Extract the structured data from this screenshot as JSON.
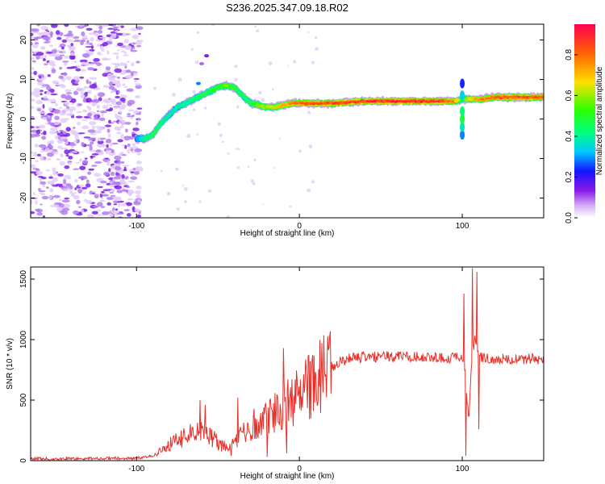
{
  "title": "S236.2025.347.09.18.R02",
  "chart_data": [
    {
      "type": "heatmap",
      "name": "spectrogram",
      "xlabel": "Height of straight line (km)",
      "ylabel": "Frequency (Hz)",
      "xlim": [
        -165,
        150
      ],
      "ylim": [
        -25,
        24
      ],
      "xticks": [
        -100,
        0,
        100
      ],
      "xtick_labels": [
        "-100",
        "0",
        "100"
      ],
      "yticks": [
        -20,
        -10,
        0,
        10,
        20
      ],
      "ytick_labels": [
        "-20",
        "-10",
        "0",
        "10",
        "20"
      ],
      "noise_region_x": [
        -165,
        -98
      ],
      "ridge": {
        "x": [
          -100,
          -95,
          -90,
          -85,
          -80,
          -75,
          -70,
          -65,
          -60,
          -55,
          -50,
          -45,
          -40,
          -35,
          -30,
          -25,
          -20,
          -15,
          -10,
          -5,
          0,
          10,
          20,
          40,
          60,
          80,
          95,
          100,
          105,
          110,
          120,
          130,
          150
        ],
        "freq": [
          -5,
          -5,
          -4,
          -1,
          1,
          3,
          4,
          5,
          6,
          7,
          8,
          8.5,
          8,
          6,
          4,
          3.5,
          3,
          3,
          3.5,
          4,
          4,
          4,
          4,
          4.5,
          4.5,
          4.5,
          4.5,
          5,
          5,
          5,
          5.5,
          5.5,
          5.5
        ],
        "amp": [
          0.3,
          0.45,
          0.5,
          0.45,
          0.4,
          0.4,
          0.45,
          0.45,
          0.5,
          0.5,
          0.55,
          0.6,
          0.55,
          0.45,
          0.5,
          0.6,
          0.65,
          0.7,
          0.75,
          0.8,
          0.85,
          0.9,
          0.9,
          0.92,
          0.95,
          0.95,
          0.85,
          0.5,
          0.7,
          0.8,
          0.85,
          0.9,
          0.9
        ]
      },
      "colorbar": {
        "label": "Normalized spectral amplitude",
        "range": [
          0.0,
          0.95
        ],
        "ticks": [
          0.0,
          0.2,
          0.4,
          0.6,
          0.8
        ],
        "tick_labels": [
          "0.0",
          "0.2",
          "0.4",
          "0.6",
          "0.8"
        ]
      }
    },
    {
      "type": "line",
      "name": "snr",
      "xlabel": "Height of straight line (km)",
      "ylabel": "SNR (10 * v/v)",
      "xlim": [
        -165,
        150
      ],
      "ylim": [
        0,
        1600
      ],
      "xticks": [
        -100,
        0,
        100
      ],
      "xtick_labels": [
        "-100",
        "0",
        "100"
      ],
      "yticks": [
        0,
        500,
        1000,
        1500
      ],
      "ytick_labels": [
        "0",
        "500",
        "1000",
        "1500"
      ],
      "color": "#e8302a",
      "x": [
        -165,
        -140,
        -120,
        -100,
        -90,
        -85,
        -80,
        -75,
        -70,
        -65,
        -60,
        -55,
        -50,
        -45,
        -40,
        -35,
        -30,
        -25,
        -20,
        -15,
        -10,
        -5,
        0,
        5,
        10,
        15,
        20,
        25,
        30,
        40,
        50,
        60,
        70,
        80,
        90,
        95,
        100,
        102,
        104,
        106,
        108,
        110,
        115,
        120,
        130,
        140,
        150
      ],
      "snr": [
        15,
        15,
        18,
        20,
        40,
        80,
        130,
        170,
        200,
        230,
        230,
        190,
        150,
        110,
        150,
        220,
        280,
        320,
        360,
        400,
        440,
        490,
        540,
        600,
        660,
        720,
        770,
        810,
        840,
        860,
        860,
        860,
        860,
        855,
        850,
        850,
        840,
        700,
        300,
        900,
        1000,
        860,
        850,
        840,
        840,
        840,
        840
      ],
      "spikes": [
        {
          "x": -61,
          "snr": 500
        },
        {
          "x": -58,
          "snr": 460
        },
        {
          "x": -42,
          "snr": 40
        },
        {
          "x": -38,
          "snr": 520
        },
        {
          "x": -20,
          "snr": 30
        },
        {
          "x": -10,
          "snr": 930
        },
        {
          "x": -8,
          "snr": 60
        },
        {
          "x": 101,
          "snr": 1380
        },
        {
          "x": 102,
          "snr": 40
        },
        {
          "x": 106,
          "snr": 1590
        },
        {
          "x": 109,
          "snr": 1560
        },
        {
          "x": 110,
          "snr": 260
        }
      ]
    }
  ]
}
